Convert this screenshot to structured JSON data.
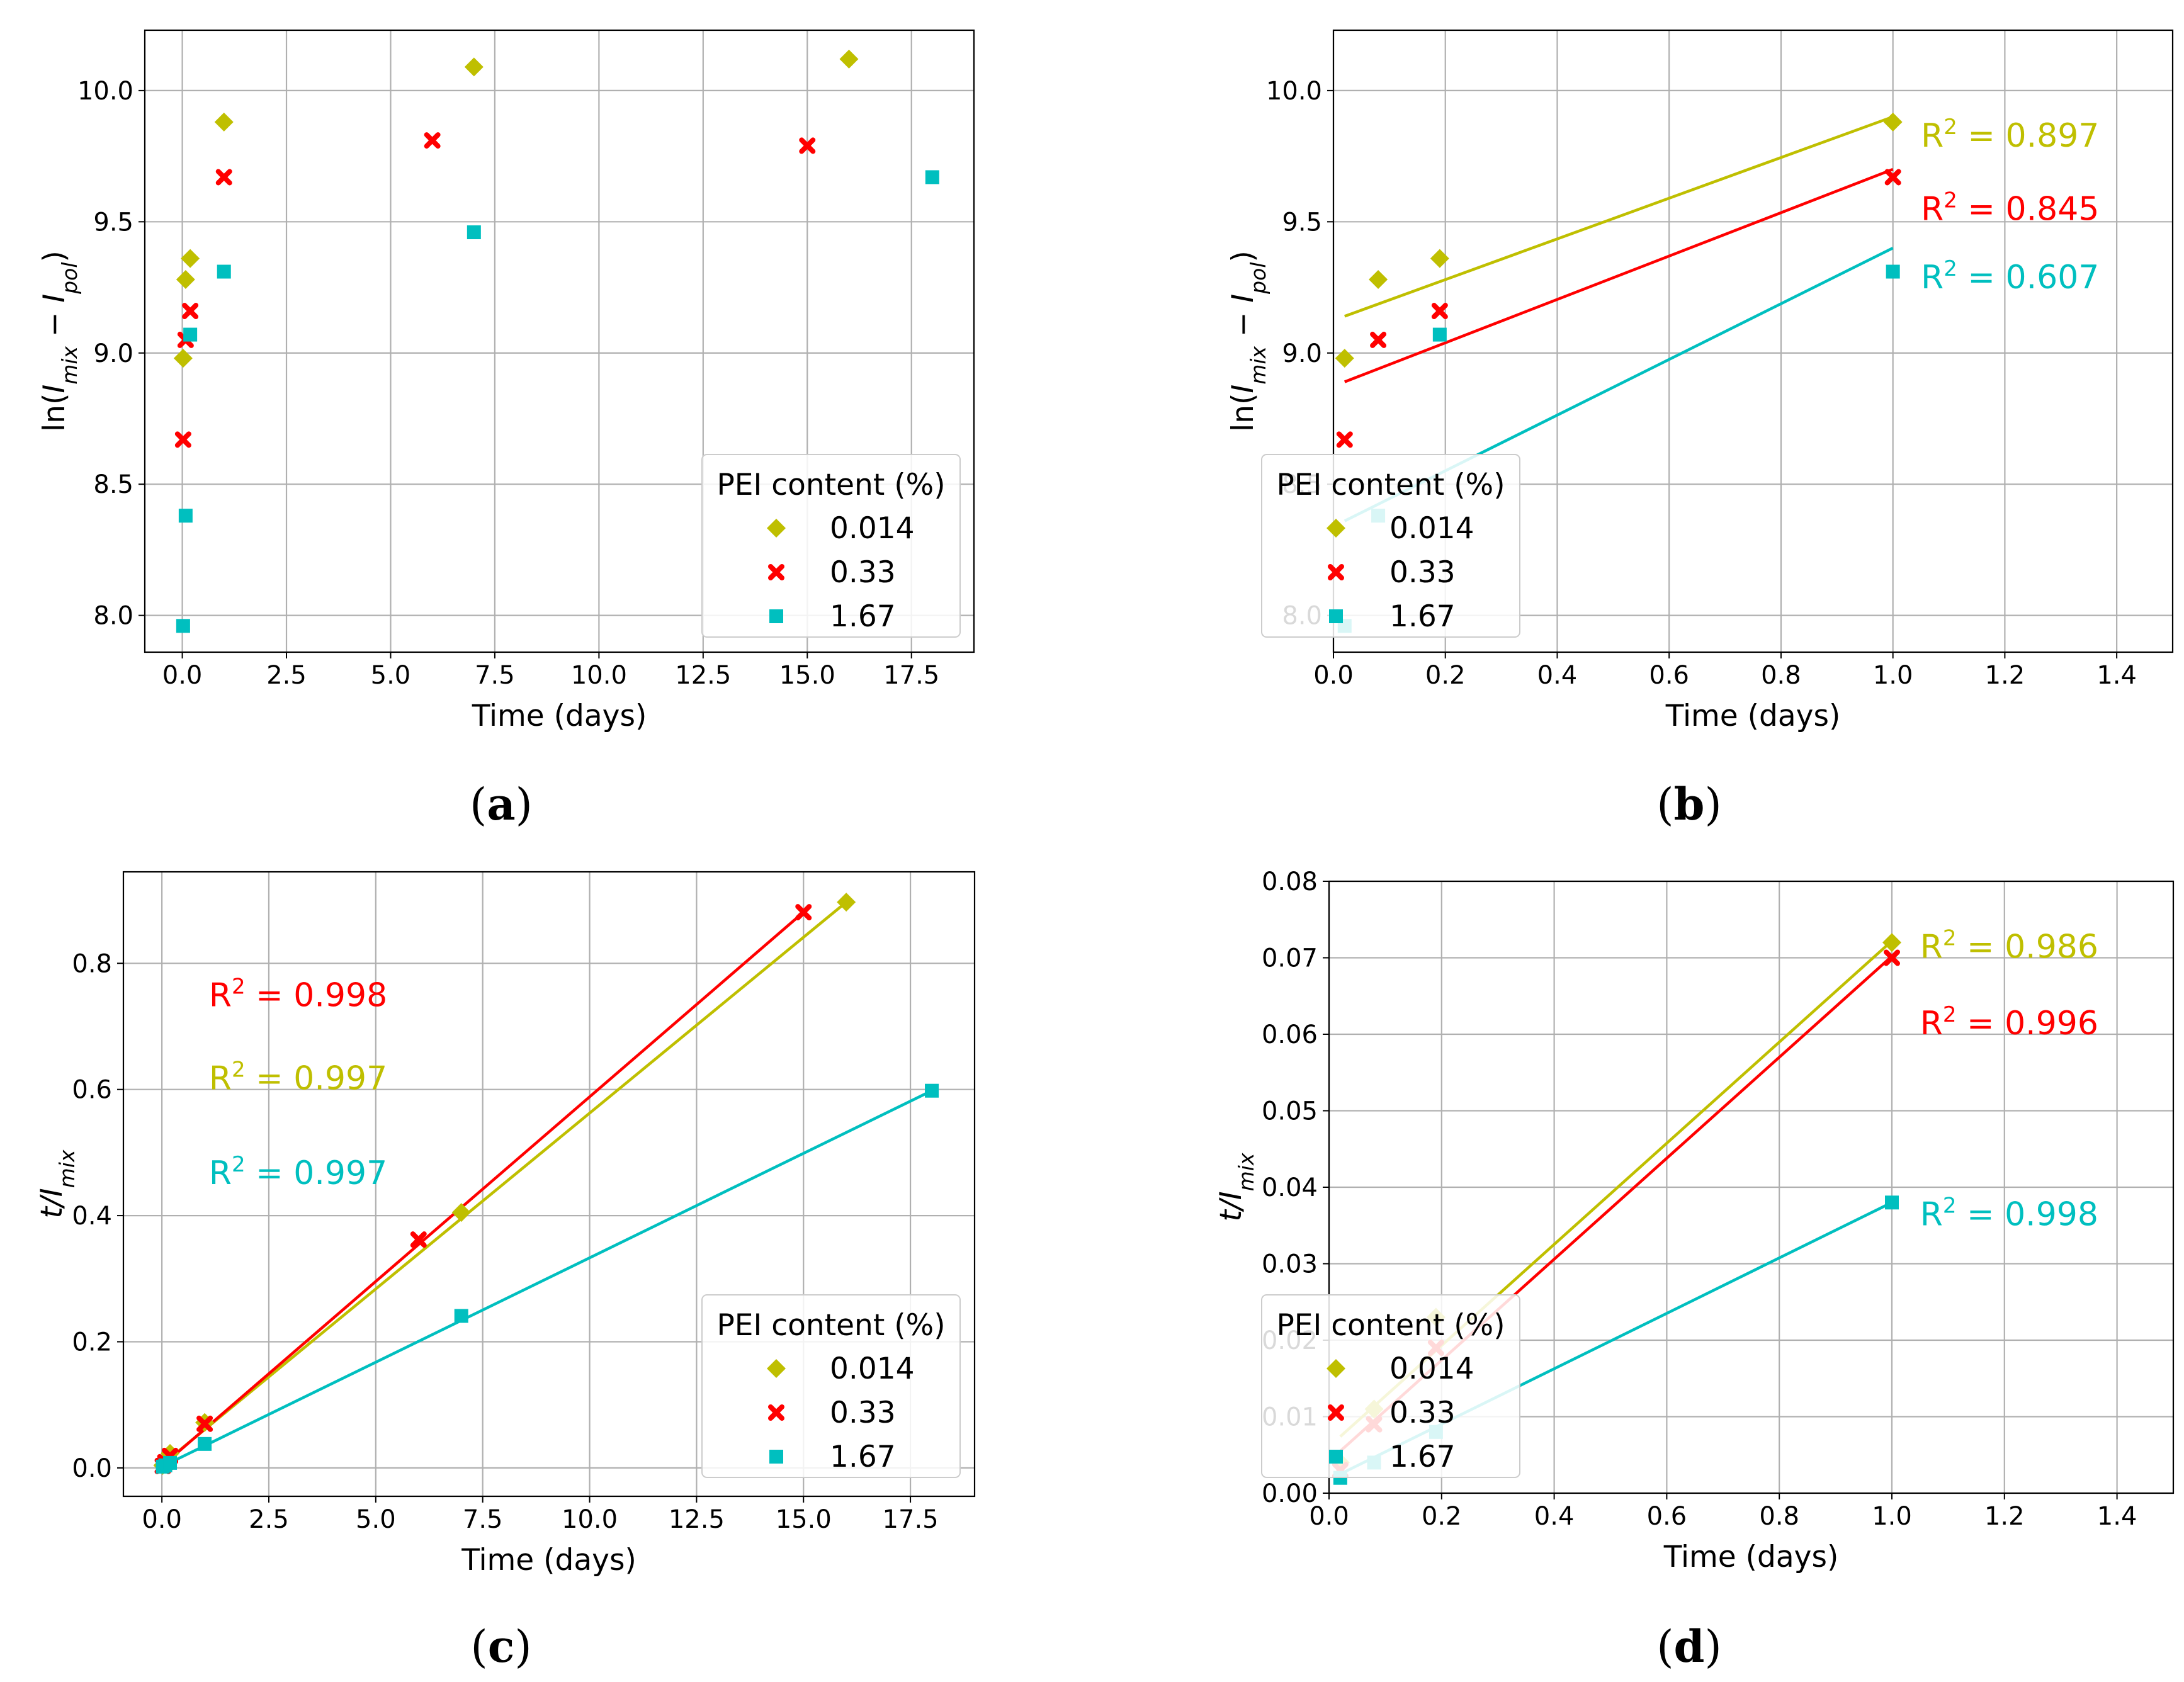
{
  "colors": {
    "s014": "#bfbf00",
    "s033": "#ff0000",
    "s167": "#00bfbf"
  },
  "legend": {
    "title": "PEI content (%)",
    "entries": [
      {
        "label": "0.014",
        "color": "#bfbf00",
        "marker": "diamond"
      },
      {
        "label": "0.33",
        "color": "#ff0000",
        "marker": "x"
      },
      {
        "label": "1.67",
        "color": "#00bfbf",
        "marker": "square"
      }
    ]
  },
  "chart_data": [
    {
      "panel": "(a)",
      "type": "scatter",
      "xlabel": "Time (days)",
      "ylabel": {
        "pre": "ln(",
        "v1": "I",
        "s1": "mix",
        "mid": " − ",
        "v2": "I",
        "s2": "pol",
        "post": ")"
      },
      "xlim": [
        -0.9,
        19.0
      ],
      "ylim": [
        7.86,
        10.23
      ],
      "xticks": [
        0,
        2.5,
        5,
        7.5,
        10,
        12.5,
        15,
        17.5
      ],
      "xtick_labels": [
        "0.0",
        "2.5",
        "5.0",
        "7.5",
        "10.0",
        "12.5",
        "15.0",
        "17.5"
      ],
      "yticks": [
        8.0,
        8.5,
        9.0,
        9.5,
        10.0
      ],
      "ytick_labels": [
        "8.0",
        "8.5",
        "9.0",
        "9.5",
        "10.0"
      ],
      "series": [
        {
          "name": "0.014",
          "color": "#bfbf00",
          "marker": "diamond",
          "x": [
            0.02,
            0.08,
            0.19,
            1.0,
            7.0,
            16.0
          ],
          "y": [
            8.98,
            9.28,
            9.36,
            9.88,
            10.09,
            10.12
          ]
        },
        {
          "name": "0.33",
          "color": "#ff0000",
          "marker": "x",
          "x": [
            0.02,
            0.08,
            0.19,
            1.0,
            6.0,
            15.0
          ],
          "y": [
            8.67,
            9.05,
            9.16,
            9.67,
            9.81,
            9.79
          ]
        },
        {
          "name": "1.67",
          "color": "#00bfbf",
          "marker": "square",
          "x": [
            0.02,
            0.08,
            0.19,
            1.0,
            7.0,
            18.0
          ],
          "y": [
            7.96,
            8.38,
            9.07,
            9.31,
            9.46,
            9.67
          ]
        }
      ],
      "fits": [],
      "annotations": [],
      "legend_position": "lower-right"
    },
    {
      "panel": "(b)",
      "type": "scatter",
      "xlabel": "Time (days)",
      "ylabel": {
        "pre": "ln(",
        "v1": "I",
        "s1": "mix",
        "mid": " − ",
        "v2": "I",
        "s2": "pol",
        "post": ")"
      },
      "xlim": [
        0.0,
        1.5
      ],
      "ylim": [
        7.86,
        10.23
      ],
      "xticks": [
        0.0,
        0.2,
        0.4,
        0.6,
        0.8,
        1.0,
        1.2,
        1.4
      ],
      "xtick_labels": [
        "0.0",
        "0.2",
        "0.4",
        "0.6",
        "0.8",
        "1.0",
        "1.2",
        "1.4"
      ],
      "yticks": [
        8.0,
        8.5,
        9.0,
        9.5,
        10.0
      ],
      "ytick_labels": [
        "8.0",
        "8.5",
        "9.0",
        "9.5",
        "10.0"
      ],
      "series": [
        {
          "name": "0.014",
          "color": "#bfbf00",
          "marker": "diamond",
          "x": [
            0.02,
            0.08,
            0.19,
            1.0
          ],
          "y": [
            8.98,
            9.28,
            9.36,
            9.88
          ]
        },
        {
          "name": "0.33",
          "color": "#ff0000",
          "marker": "x",
          "x": [
            0.02,
            0.08,
            0.19,
            1.0
          ],
          "y": [
            8.67,
            9.05,
            9.16,
            9.67
          ]
        },
        {
          "name": "1.67",
          "color": "#00bfbf",
          "marker": "square",
          "x": [
            0.02,
            0.08,
            0.19,
            1.0
          ],
          "y": [
            7.96,
            8.38,
            9.07,
            9.31
          ]
        }
      ],
      "fits": [
        {
          "series": "0.014",
          "color": "#bfbf00",
          "x": [
            0.02,
            1.0
          ],
          "y": [
            9.14,
            9.9
          ]
        },
        {
          "series": "0.33",
          "color": "#ff0000",
          "x": [
            0.02,
            1.0
          ],
          "y": [
            8.89,
            9.7
          ]
        },
        {
          "series": "1.67",
          "color": "#00bfbf",
          "x": [
            0.02,
            1.0
          ],
          "y": [
            8.36,
            9.4
          ]
        }
      ],
      "annotations": [
        {
          "base": "R",
          "sup": "2",
          "rest": " = 0.897",
          "color": "#bfbf00",
          "x": 1.05,
          "y": 9.83
        },
        {
          "base": "R",
          "sup": "2",
          "rest": " = 0.845",
          "color": "#ff0000",
          "x": 1.05,
          "y": 9.55
        },
        {
          "base": "R",
          "sup": "2",
          "rest": " = 0.607",
          "color": "#00bfbf",
          "x": 1.05,
          "y": 9.29
        }
      ],
      "legend_position": "lower-right"
    },
    {
      "panel": "(c)",
      "type": "scatter",
      "xlabel": "Time (days)",
      "ylabel": {
        "pre": "",
        "v1": "t",
        "s1": "",
        "mid": "/",
        "v2": "I",
        "s2": "mix",
        "post": ""
      },
      "xlim": [
        -0.9,
        19.0
      ],
      "ylim": [
        -0.045,
        0.945
      ],
      "xticks": [
        0,
        2.5,
        5,
        7.5,
        10,
        12.5,
        15,
        17.5
      ],
      "xtick_labels": [
        "0.0",
        "2.5",
        "5.0",
        "7.5",
        "10.0",
        "12.5",
        "15.0",
        "17.5"
      ],
      "yticks": [
        0.0,
        0.2,
        0.4,
        0.6,
        0.8
      ],
      "ytick_labels": [
        "0.0",
        "0.2",
        "0.4",
        "0.6",
        "0.8"
      ],
      "series": [
        {
          "name": "0.014",
          "color": "#bfbf00",
          "marker": "diamond",
          "x": [
            0.02,
            0.08,
            0.19,
            1.0,
            7.0,
            16.0
          ],
          "y": [
            0.004,
            0.011,
            0.023,
            0.072,
            0.405,
            0.897
          ]
        },
        {
          "name": "0.33",
          "color": "#ff0000",
          "marker": "x",
          "x": [
            0.02,
            0.08,
            0.19,
            1.0,
            6.0,
            15.0
          ],
          "y": [
            0.003,
            0.009,
            0.019,
            0.07,
            0.362,
            0.881
          ]
        },
        {
          "name": "1.67",
          "color": "#00bfbf",
          "marker": "square",
          "x": [
            0.02,
            0.08,
            0.19,
            1.0,
            7.0,
            18.0
          ],
          "y": [
            0.002,
            0.004,
            0.008,
            0.038,
            0.241,
            0.598
          ]
        }
      ],
      "fits": [
        {
          "series": "0.014",
          "color": "#bfbf00",
          "x": [
            0.0,
            16.0
          ],
          "y": [
            0.005,
            0.897
          ]
        },
        {
          "series": "0.33",
          "color": "#ff0000",
          "x": [
            0.0,
            15.0
          ],
          "y": [
            0.003,
            0.881
          ]
        },
        {
          "series": "1.67",
          "color": "#00bfbf",
          "x": [
            0.0,
            18.0
          ],
          "y": [
            0.002,
            0.598
          ]
        }
      ],
      "annotations": [
        {
          "base": "R",
          "sup": "2",
          "rest": " = 0.998",
          "color": "#ff0000",
          "x": 1.1,
          "y": 0.75
        },
        {
          "base": "R",
          "sup": "2",
          "rest": " = 0.997",
          "color": "#bfbf00",
          "x": 1.1,
          "y": 0.618
        },
        {
          "base": "R",
          "sup": "2",
          "rest": " = 0.997",
          "color": "#00bfbf",
          "x": 1.1,
          "y": 0.468
        }
      ],
      "legend_position": "lower-right"
    },
    {
      "panel": "(d)",
      "type": "scatter",
      "xlabel": "Time (days)",
      "ylabel": {
        "pre": "",
        "v1": "t",
        "s1": "",
        "mid": "/",
        "v2": "I",
        "s2": "mix",
        "post": ""
      },
      "xlim": [
        0.0,
        1.5
      ],
      "ylim": [
        0.0,
        0.08
      ],
      "xticks": [
        0.0,
        0.2,
        0.4,
        0.6,
        0.8,
        1.0,
        1.2,
        1.4
      ],
      "xtick_labels": [
        "0.0",
        "0.2",
        "0.4",
        "0.6",
        "0.8",
        "1.0",
        "1.2",
        "1.4"
      ],
      "yticks": [
        0.0,
        0.01,
        0.02,
        0.03,
        0.04,
        0.05,
        0.06,
        0.07,
        0.08
      ],
      "ytick_labels": [
        "0.00",
        "0.01",
        "0.02",
        "0.03",
        "0.04",
        "0.05",
        "0.06",
        "0.07",
        "0.08"
      ],
      "series": [
        {
          "name": "0.014",
          "color": "#bfbf00",
          "marker": "diamond",
          "x": [
            0.02,
            0.08,
            0.19,
            1.0
          ],
          "y": [
            0.004,
            0.011,
            0.023,
            0.072
          ]
        },
        {
          "name": "0.33",
          "color": "#ff0000",
          "marker": "x",
          "x": [
            0.02,
            0.08,
            0.19,
            1.0
          ],
          "y": [
            0.003,
            0.009,
            0.019,
            0.07
          ]
        },
        {
          "name": "1.67",
          "color": "#00bfbf",
          "marker": "square",
          "x": [
            0.02,
            0.08,
            0.19,
            1.0
          ],
          "y": [
            0.002,
            0.004,
            0.008,
            0.038
          ]
        }
      ],
      "fits": [
        {
          "series": "0.014",
          "color": "#bfbf00",
          "x": [
            0.02,
            1.0
          ],
          "y": [
            0.0074,
            0.0722
          ]
        },
        {
          "series": "0.33",
          "color": "#ff0000",
          "x": [
            0.02,
            1.0
          ],
          "y": [
            0.0055,
            0.0702
          ]
        },
        {
          "series": "1.67",
          "color": "#00bfbf",
          "x": [
            0.02,
            1.0
          ],
          "y": [
            0.0025,
            0.038
          ]
        }
      ],
      "annotations": [
        {
          "base": "R",
          "sup": "2",
          "rest": " = 0.986",
          "color": "#bfbf00",
          "x": 1.05,
          "y": 0.0715
        },
        {
          "base": "R",
          "sup": "2",
          "rest": " = 0.996",
          "color": "#ff0000",
          "x": 1.05,
          "y": 0.0615
        },
        {
          "base": "R",
          "sup": "2",
          "rest": " = 0.998",
          "color": "#00bfbf",
          "x": 1.05,
          "y": 0.0365
        }
      ],
      "legend_position": "lower-right"
    }
  ]
}
